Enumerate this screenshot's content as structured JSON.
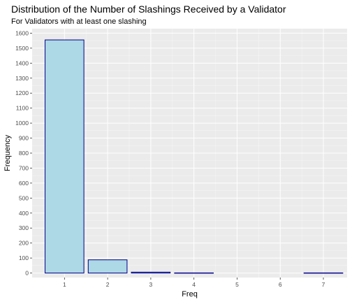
{
  "chart_data": {
    "type": "bar",
    "title": "Distribution of the Number of Slashings Received by a Validator",
    "subtitle": "For Validators with at least one slashing",
    "xlabel": "Freq",
    "ylabel": "Frequency",
    "x": [
      1,
      2,
      3,
      4,
      5,
      6,
      7
    ],
    "x_tick_labels": [
      "1",
      "2",
      "3",
      "4",
      "5",
      "6",
      "7"
    ],
    "bars": [
      {
        "x": 1,
        "value": 1555
      },
      {
        "x": 2,
        "value": 88
      },
      {
        "x": 3,
        "value": 6
      },
      {
        "x": 4,
        "value": 1
      },
      {
        "x": 7,
        "value": 1
      }
    ],
    "ylim": [
      -30,
      1630
    ],
    "xlim": [
      0.25,
      7.55
    ],
    "y_ticks": [
      0,
      100,
      200,
      300,
      400,
      500,
      600,
      700,
      800,
      900,
      1000,
      1100,
      1200,
      1300,
      1400,
      1500,
      1600
    ],
    "grid": true,
    "colors": {
      "bar_fill": "#add8e6",
      "bar_stroke": "#00008b",
      "panel": "#ebebeb",
      "grid_major": "#ffffff"
    }
  }
}
